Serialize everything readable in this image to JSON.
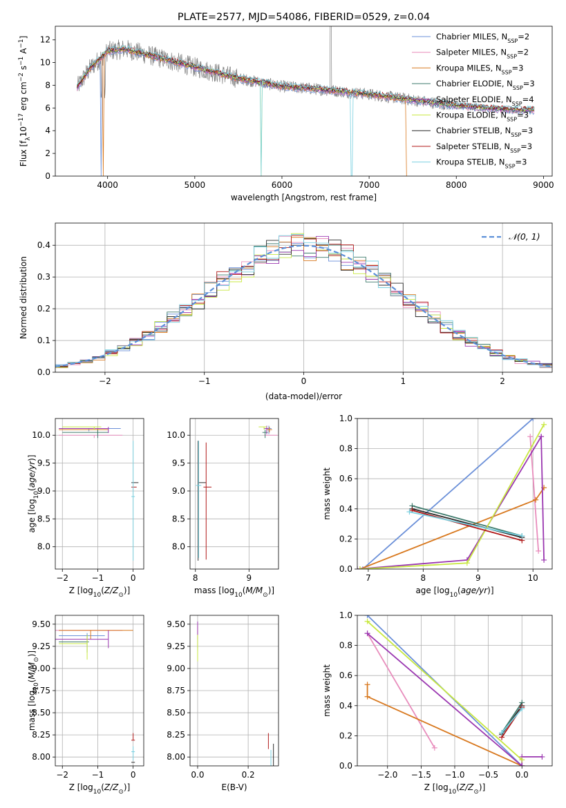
{
  "chart_data": [
    {
      "id": "spectrum",
      "type": "line",
      "title": "PLATE=2577, MJD=54086, FIBERID=0529, z=0.04",
      "xlabel": "wavelength [Angstrom, rest frame]",
      "ylabel": "Flux [f_λ 10^-17 erg cm^-2 s^-1 A^-1]",
      "xlim": [
        3400,
        9100
      ],
      "ylim": [
        0,
        13.2
      ],
      "xticks": [
        4000,
        5000,
        6000,
        7000,
        8000,
        9000
      ],
      "yticks": [
        0,
        2,
        4,
        6,
        8,
        10,
        12
      ],
      "legend_position": "top-right",
      "legend": [
        {
          "base": "Chabrier MILES, N",
          "sub": "SSP",
          "tail": "=2",
          "color": "#6a8fd8"
        },
        {
          "base": "Salpeter MILES, N",
          "sub": "SSP",
          "tail": "=2",
          "color": "#e88cbc"
        },
        {
          "base": "Kroupa MILES, N",
          "sub": "SSP",
          "tail": "=3",
          "color": "#d8781e"
        },
        {
          "base": "Chabrier ELODIE, N",
          "sub": "SSP",
          "tail": "=3",
          "color": "#3d7a6c"
        },
        {
          "base": "Salpeter ELODIE, N",
          "sub": "SSP",
          "tail": "=4",
          "color": "#9a36b0"
        },
        {
          "base": "Kroupa ELODIE, N",
          "sub": "SSP",
          "tail": "=3",
          "color": "#c8e840"
        },
        {
          "base": "Chabrier STELIB, N",
          "sub": "SSP",
          "tail": "=3",
          "color": "#2a2a2a"
        },
        {
          "base": "Salpeter STELIB, N",
          "sub": "SSP",
          "tail": "=3",
          "color": "#b01818"
        },
        {
          "base": "Kroupa STELIB, N",
          "sub": "SSP",
          "tail": "=3",
          "color": "#78d0e0"
        }
      ],
      "data_color": "#808080",
      "continuum": {
        "x": [
          3650,
          3800,
          4000,
          4200,
          4500,
          5000,
          5500,
          6000,
          6500,
          7000,
          7500,
          8000,
          8500,
          8900
        ],
        "y": [
          7.8,
          9.5,
          11.0,
          11.2,
          10.6,
          9.6,
          8.6,
          7.9,
          7.6,
          7.2,
          6.7,
          6.2,
          5.9,
          5.8
        ]
      }
    },
    {
      "id": "residuals",
      "type": "line",
      "xlabel": "(data-model)/error",
      "ylabel": "Normed distribution",
      "xlim": [
        -2.5,
        2.5
      ],
      "ylim": [
        0,
        0.47
      ],
      "xticks": [
        -2,
        -1,
        0,
        1,
        2
      ],
      "yticks": [
        0.0,
        0.1,
        0.2,
        0.3,
        0.4
      ],
      "grid": true,
      "legend_position": "top-right",
      "gaussian_label": "𝒩(0, 1)",
      "gaussian_color": "#5b8fd8"
    },
    {
      "id": "z-age",
      "type": "scatter",
      "xlabel": "Z [log₁₀(Z/Z☉)]",
      "ylabel": "age  [log₁₀(age/yr)]",
      "xlim": [
        -2.2,
        0.3
      ],
      "ylim": [
        7.6,
        10.3
      ],
      "xticks": [
        -2,
        -1,
        0
      ],
      "yticks": [
        8.0,
        8.5,
        9.0,
        9.5,
        10.0
      ],
      "grid": true,
      "points": [
        {
          "x": -1.25,
          "y": 10.12,
          "c": "#6a8fd8"
        },
        {
          "x": -1.1,
          "y": 10.0,
          "c": "#e88cbc"
        },
        {
          "x": -1.0,
          "y": 10.1,
          "c": "#d8781e"
        },
        {
          "x": -1.0,
          "y": 10.05,
          "c": "#3d7a6c"
        },
        {
          "x": -0.7,
          "y": 10.12,
          "c": "#9a36b0"
        },
        {
          "x": -1.1,
          "y": 10.15,
          "c": "#c8e840"
        },
        {
          "x": 0.0,
          "y": 9.15,
          "c": "#2a2a2a"
        },
        {
          "x": 0.0,
          "y": 9.07,
          "c": "#b01818"
        },
        {
          "x": 0.0,
          "y": 8.9,
          "c": "#78d0e0"
        }
      ]
    },
    {
      "id": "mass-age",
      "type": "scatter",
      "xlabel": "mass [log₁₀(M/M☉)]",
      "xlim": [
        7.9,
        9.55
      ],
      "ylim": [
        7.6,
        10.3
      ],
      "xticks": [
        8,
        9
      ],
      "yticks": [
        8.0,
        8.5,
        9.0,
        9.5,
        10.0
      ],
      "grid": true,
      "points": [
        {
          "x": 9.37,
          "y": 10.12,
          "c": "#6a8fd8"
        },
        {
          "x": 9.43,
          "y": 10.0,
          "c": "#e88cbc"
        },
        {
          "x": 9.38,
          "y": 10.1,
          "c": "#d8781e"
        },
        {
          "x": 9.3,
          "y": 10.05,
          "c": "#3d7a6c"
        },
        {
          "x": 9.33,
          "y": 10.12,
          "c": "#9a36b0"
        },
        {
          "x": 9.28,
          "y": 10.15,
          "c": "#c8e840"
        },
        {
          "x": 8.05,
          "y": 9.15,
          "c": "#2a2a2a"
        },
        {
          "x": 8.2,
          "y": 9.07,
          "c": "#b01818"
        },
        {
          "x": 8.06,
          "y": 9.1,
          "c": "#78d0e0"
        }
      ]
    },
    {
      "id": "age-weight",
      "type": "line",
      "xlabel": "age  [log₁₀(age/yr)]",
      "ylabel": "mass weight",
      "xlim": [
        6.8,
        10.35
      ],
      "ylim": [
        0.0,
        1.0
      ],
      "xticks": [
        7,
        8,
        9,
        10
      ],
      "yticks": [
        0.0,
        0.2,
        0.4,
        0.6,
        0.8,
        1.0
      ],
      "grid": true,
      "series": [
        {
          "c": "#6a8fd8",
          "x": [
            6.9,
            10.0
          ],
          "y": [
            0.0,
            1.0
          ]
        },
        {
          "c": "#e88cbc",
          "x": [
            9.95,
            10.1
          ],
          "y": [
            0.88,
            0.12
          ]
        },
        {
          "c": "#d8781e",
          "x": [
            6.85,
            10.05,
            10.2
          ],
          "y": [
            0.0,
            0.46,
            0.54
          ]
        },
        {
          "c": "#3d7a6c",
          "x": [
            7.8,
            9.8
          ],
          "y": [
            0.42,
            0.22
          ]
        },
        {
          "c": "#9a36b0",
          "x": [
            6.8,
            8.8,
            10.15,
            10.2
          ],
          "y": [
            0.0,
            0.06,
            0.88,
            0.06
          ]
        },
        {
          "c": "#c8e840",
          "x": [
            6.85,
            8.8,
            10.2
          ],
          "y": [
            0.0,
            0.04,
            0.96
          ]
        },
        {
          "c": "#2a2a2a",
          "x": [
            7.8,
            9.8
          ],
          "y": [
            0.4,
            0.21
          ]
        },
        {
          "c": "#b01818",
          "x": [
            7.8,
            9.8
          ],
          "y": [
            0.39,
            0.19
          ]
        },
        {
          "c": "#78d0e0",
          "x": [
            7.75,
            9.8
          ],
          "y": [
            0.38,
            0.22
          ]
        }
      ]
    },
    {
      "id": "z-mass",
      "type": "scatter",
      "xlabel": "Z [log₁₀(Z/Z☉)]",
      "ylabel": "mass [log₁₀(M/M☉)]",
      "xlim": [
        -2.2,
        0.3
      ],
      "ylim": [
        7.9,
        9.6
      ],
      "xticks": [
        -2,
        -1,
        0
      ],
      "yticks": [
        8.0,
        8.25,
        8.5,
        8.75,
        9.0,
        9.25,
        9.5
      ],
      "grid": true,
      "points": [
        {
          "x": -1.3,
          "y": 9.37,
          "c": "#6a8fd8"
        },
        {
          "x": -0.9,
          "y": 9.43,
          "c": "#e88cbc"
        },
        {
          "x": -1.2,
          "y": 9.43,
          "c": "#d8781e"
        },
        {
          "x": -1.3,
          "y": 9.3,
          "c": "#3d7a6c"
        },
        {
          "x": -0.7,
          "y": 9.33,
          "c": "#9a36b0"
        },
        {
          "x": -1.3,
          "y": 9.28,
          "c": "#c8e840"
        },
        {
          "x": 0.0,
          "y": 7.94,
          "c": "#2a2a2a"
        },
        {
          "x": 0.0,
          "y": 8.19,
          "c": "#b01818"
        },
        {
          "x": 0.0,
          "y": 8.06,
          "c": "#78d0e0"
        }
      ]
    },
    {
      "id": "ebv-mass",
      "type": "scatter",
      "xlabel": "E(B-V)",
      "xlim": [
        -0.03,
        0.32
      ],
      "ylim": [
        7.9,
        9.6
      ],
      "xticks": [
        0.0,
        0.2
      ],
      "yticks": [
        8.0,
        8.25,
        8.5,
        8.75,
        9.0,
        9.25,
        9.5
      ],
      "grid": true,
      "points": [
        {
          "x": 0.0,
          "y": 9.37,
          "c": "#6a8fd8"
        },
        {
          "x": 0.0,
          "y": 9.43,
          "c": "#e88cbc"
        },
        {
          "x": 0.0,
          "y": 9.43,
          "c": "#d8781e"
        },
        {
          "x": 0.0,
          "y": 9.3,
          "c": "#3d7a6c"
        },
        {
          "x": 0.0,
          "y": 9.33,
          "c": "#9a36b0"
        },
        {
          "x": 0.0,
          "y": 9.28,
          "c": "#c8e840"
        },
        {
          "x": 0.3,
          "y": 8.05,
          "c": "#2a2a2a"
        },
        {
          "x": 0.28,
          "y": 8.19,
          "c": "#b01818"
        },
        {
          "x": 0.29,
          "y": 8.0,
          "c": "#78d0e0"
        }
      ]
    },
    {
      "id": "z-weight",
      "type": "line",
      "xlabel": "Z [log₁₀(Z/Z☉)]",
      "ylabel": "mass weight",
      "xlim": [
        -2.45,
        0.45
      ],
      "ylim": [
        0.0,
        1.0
      ],
      "xticks": [
        -2.0,
        -1.5,
        -1.0,
        -0.5,
        0.0
      ],
      "yticks": [
        0.0,
        0.2,
        0.4,
        0.6,
        0.8,
        1.0
      ],
      "grid": true,
      "series": [
        {
          "c": "#6a8fd8",
          "x": [
            -2.3,
            0.0
          ],
          "y": [
            1.0,
            0.0
          ]
        },
        {
          "c": "#e88cbc",
          "x": [
            -2.3,
            -1.3
          ],
          "y": [
            0.88,
            0.12
          ]
        },
        {
          "c": "#d8781e",
          "x": [
            -2.3,
            -2.3,
            0.0
          ],
          "y": [
            0.54,
            0.46,
            0.0
          ]
        },
        {
          "c": "#3d7a6c",
          "x": [
            -0.3,
            0.0
          ],
          "y": [
            0.22,
            0.42
          ]
        },
        {
          "c": "#9a36b0",
          "x": [
            -2.3,
            0.0,
            0.0,
            0.3
          ],
          "y": [
            0.88,
            0.0,
            0.06,
            0.06
          ]
        },
        {
          "c": "#c8e840",
          "x": [
            -2.3,
            0.0
          ],
          "y": [
            0.96,
            0.04
          ]
        },
        {
          "c": "#2a2a2a",
          "x": [
            -0.3,
            0.0
          ],
          "y": [
            0.21,
            0.4
          ]
        },
        {
          "c": "#b01818",
          "x": [
            -0.3,
            0.0
          ],
          "y": [
            0.19,
            0.39
          ]
        },
        {
          "c": "#78d0e0",
          "x": [
            -0.3,
            0.0
          ],
          "y": [
            0.22,
            0.38
          ]
        }
      ]
    }
  ]
}
